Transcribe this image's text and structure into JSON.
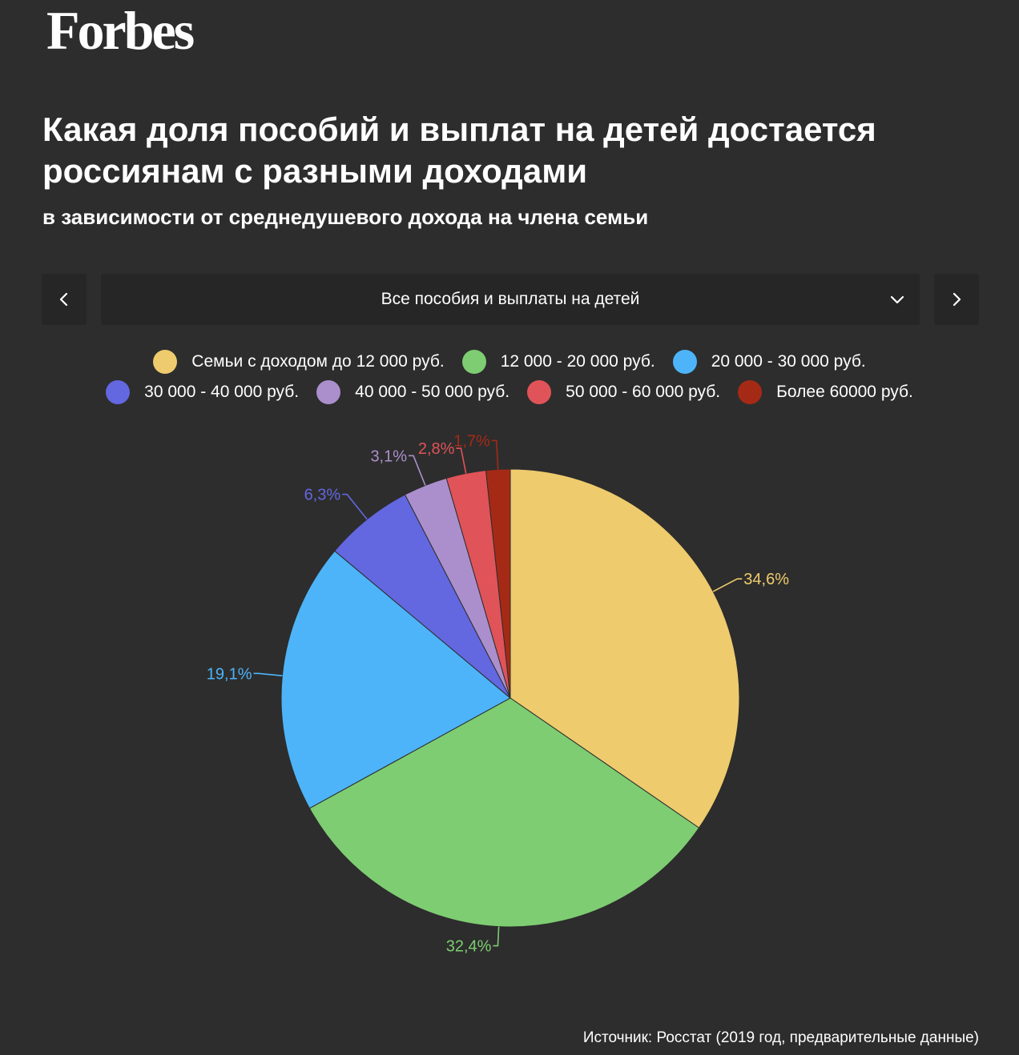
{
  "brand": {
    "logo": "Forbes"
  },
  "header": {
    "title": "Какая доля пособий и выплат на детей достается россиянам с разными доходами",
    "subtitle": "в зависимости от среднедушевого дохода на члена семьи"
  },
  "selector": {
    "value": "Все пособия и выплаты на детей"
  },
  "icons": {
    "prev": "chevron-left-icon",
    "next": "chevron-right-icon",
    "dropdown": "chevron-down-icon"
  },
  "chart_data": {
    "type": "pie",
    "legend_position": "top",
    "slices": [
      {
        "name": "Семьи с доходом до 12 000 руб.",
        "value": 34.6,
        "label": "34,6%",
        "color": "#eecb6d"
      },
      {
        "name": "12 000 - 20 000 руб.",
        "value": 32.4,
        "label": "32,4%",
        "color": "#7ecd72"
      },
      {
        "name": "20 000 - 30 000 руб.",
        "value": 19.1,
        "label": "19,1%",
        "color": "#4db4f9"
      },
      {
        "name": "30 000 - 40 000 руб.",
        "value": 6.3,
        "label": "6,3%",
        "color": "#6367e0"
      },
      {
        "name": "40 000 - 50 000 руб.",
        "value": 3.1,
        "label": "3,1%",
        "color": "#ab8fcc"
      },
      {
        "name": "50 000 - 60 000 руб.",
        "value": 2.8,
        "label": "2,8%",
        "color": "#e05358"
      },
      {
        "name": "Более 60000 руб.",
        "value": 1.7,
        "label": "1,7%",
        "color": "#a52a16"
      }
    ]
  },
  "footer": {
    "source": "Источник: Росстат (2019 год, предварительные данные)"
  }
}
